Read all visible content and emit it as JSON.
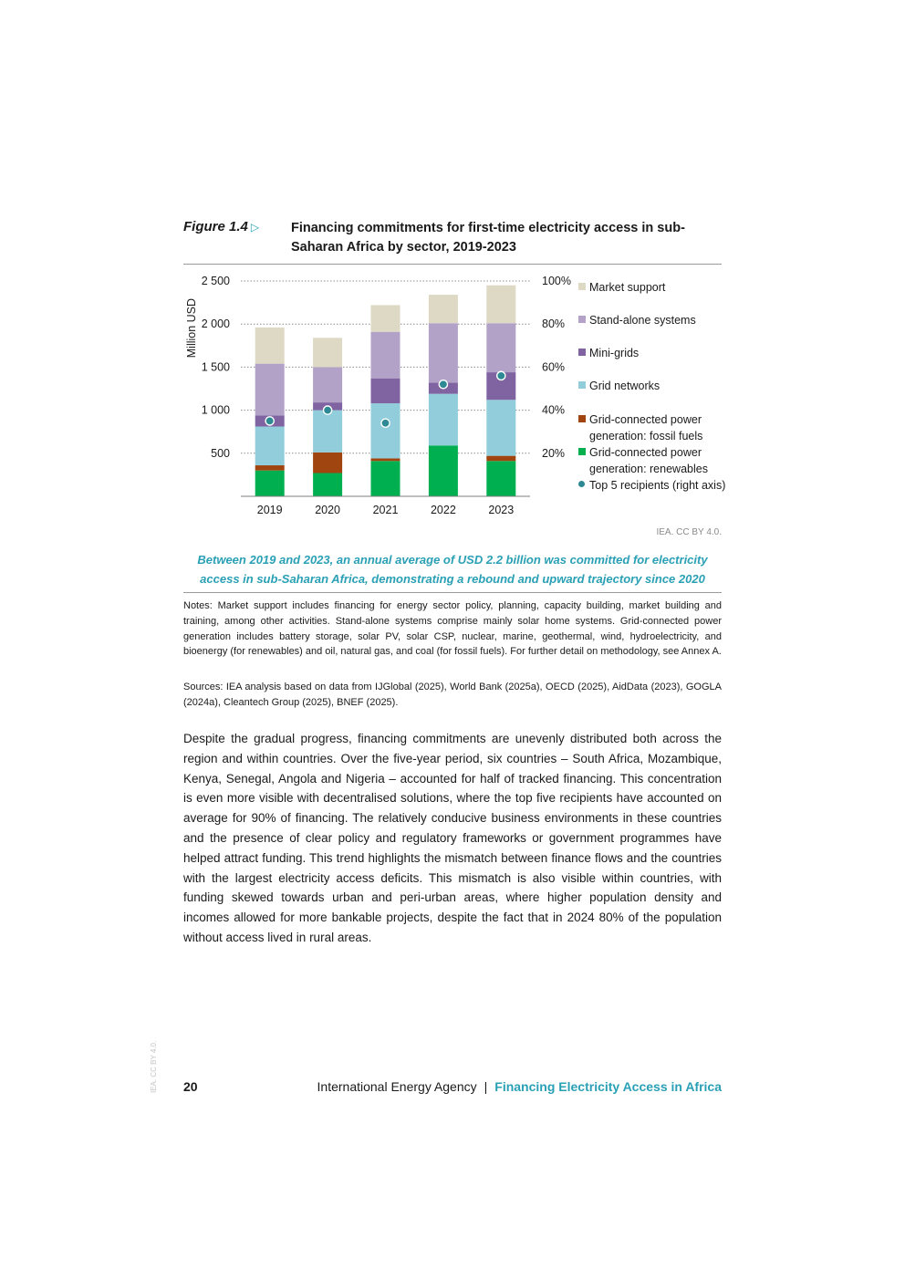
{
  "figure": {
    "label": "Figure 1.4",
    "arrow": "▷",
    "title": "Financing commitments for first-time electricity access in sub-Saharan Africa by sector, 2019-2023"
  },
  "chart_data": {
    "type": "bar",
    "stacked": true,
    "categories": [
      "2019",
      "2020",
      "2021",
      "2022",
      "2023"
    ],
    "ylabel": "Million USD",
    "ylim": [
      0,
      2500
    ],
    "yticks": [
      500,
      1000,
      1500,
      2000,
      2500
    ],
    "ytick_labels": [
      "500",
      "1 000",
      "1 500",
      "2 000",
      "2 500"
    ],
    "y2lim": [
      0,
      100
    ],
    "y2ticks": [
      20,
      40,
      60,
      80,
      100
    ],
    "y2tick_labels": [
      "20%",
      "40%",
      "60%",
      "80%",
      "100%"
    ],
    "gridlines": "dotted",
    "legend_position": "right",
    "series": [
      {
        "name": "Grid-connected power generation: renewables",
        "color": "#00b050",
        "values": [
          300,
          270,
          410,
          590,
          410
        ]
      },
      {
        "name": "Grid-connected power generation: fossil fuels",
        "color": "#a0450f",
        "values": [
          60,
          240,
          30,
          0,
          60
        ]
      },
      {
        "name": "Grid networks",
        "color": "#92cddc",
        "values": [
          450,
          490,
          640,
          600,
          650
        ]
      },
      {
        "name": "Mini-grids",
        "color": "#8064a2",
        "values": [
          130,
          90,
          290,
          130,
          320
        ]
      },
      {
        "name": "Stand-alone systems",
        "color": "#b3a2c7",
        "values": [
          600,
          410,
          540,
          690,
          570
        ]
      },
      {
        "name": "Market support",
        "color": "#ddd9c4",
        "values": [
          420,
          340,
          310,
          330,
          440
        ]
      }
    ],
    "line_series": {
      "name": "Top 5 recipients (right axis)",
      "axis": "right",
      "color": "#2d8a94",
      "values": [
        35,
        40,
        34,
        52,
        56
      ]
    }
  },
  "legend": [
    {
      "label": "Market support",
      "color": "#ddd9c4"
    },
    {
      "label": "Stand-alone systems",
      "color": "#b3a2c7"
    },
    {
      "label": "Mini-grids",
      "color": "#8064a2"
    },
    {
      "label": "Grid networks",
      "color": "#92cddc"
    },
    {
      "label": "Grid-connected power generation: fossil fuels",
      "color": "#a0450f"
    },
    {
      "label": "Grid-connected power generation: renewables",
      "color": "#00b050"
    },
    {
      "label": "Top 5 recipients (right axis)",
      "color": "#2d8a94"
    }
  ],
  "credit": "IEA. CC BY 4.0.",
  "caption": "Between 2019 and 2023, an annual average of USD 2.2 billion was committed for electricity access in sub-Saharan Africa, demonstrating a rebound and upward trajectory since 2020",
  "notes": "Notes: Market support includes financing for energy sector policy, planning, capacity building, market building and training, among other activities. Stand-alone systems comprise mainly solar home systems. Grid-connected power generation includes battery storage, solar PV, solar CSP, nuclear, marine, geothermal, wind, hydroelectricity, and bioenergy (for renewables) and oil, natural gas, and coal (for fossil fuels). For further detail on methodology, see Annex A.",
  "sources": "Sources: IEA analysis based on data from IJGlobal (2025), World Bank (2025a), OECD (2025), AidData (2023), GOGLA (2024a), Cleantech Group (2025), BNEF (2025).",
  "body": "Despite the gradual progress, financing commitments are unevenly distributed both across the region and within countries. Over the five-year period, six countries – South Africa, Mozambique, Kenya, Senegal, Angola and Nigeria – accounted for half of tracked financing. This concentration is even more visible with decentralised solutions, where the top five recipients have accounted on average for 90% of financing. The relatively conducive business environments in these countries and the presence of clear policy and regulatory frameworks or government programmes have helped attract funding. This trend highlights the mismatch between finance flows and the countries with the largest electricity access deficits. This mismatch is also visible within countries, with funding skewed towards urban and peri-urban areas, where higher population density and incomes allowed for more bankable projects, despite the fact that in 2024 80% of the population without access lived in rural areas.",
  "side_credit": "IEA. CC BY 4.0.",
  "footer": {
    "page": "20",
    "org": "International Energy Agency",
    "separator": "|",
    "report": "Financing Electricity Access in Africa"
  }
}
